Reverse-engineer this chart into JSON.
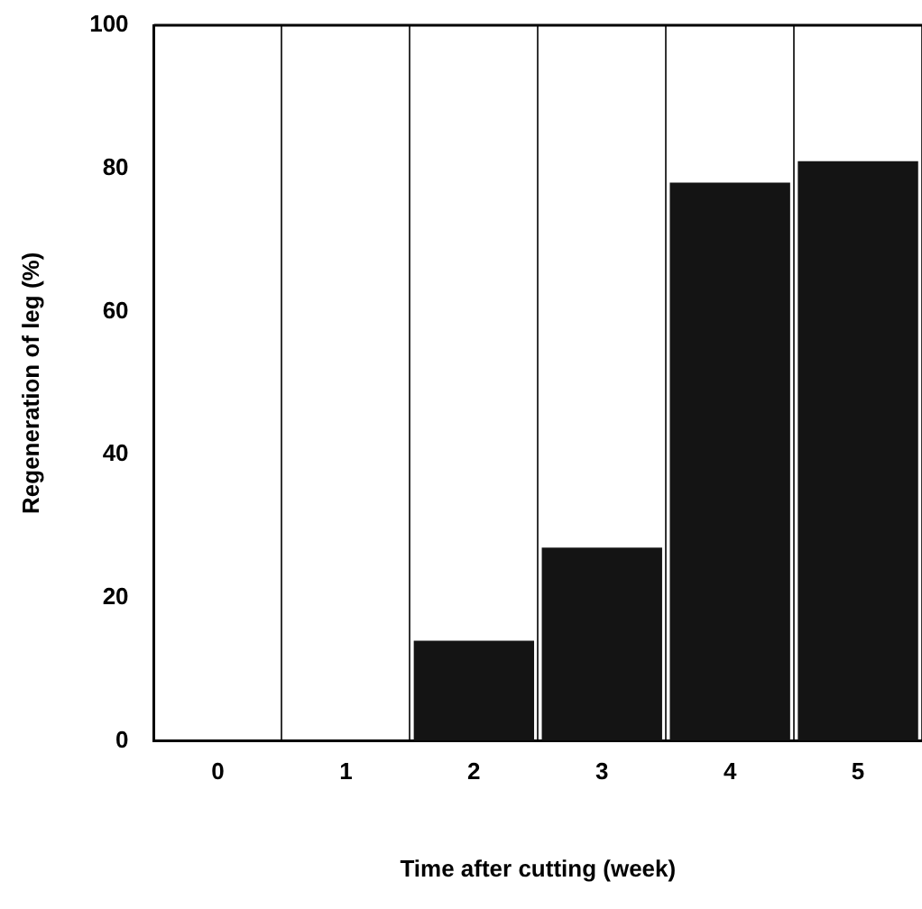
{
  "chart_data": {
    "type": "bar",
    "xlabel": "Time after cutting (week)",
    "ylabel": "Regeneration of leg (%)",
    "categories": [
      "0",
      "1",
      "2",
      "3",
      "4",
      "5"
    ],
    "values": [
      0,
      0,
      14,
      27,
      78,
      81
    ],
    "color": "#141414",
    "ylim": [
      0,
      100
    ],
    "yticks": [
      0,
      20,
      40,
      60,
      80,
      100
    ],
    "grid": "x"
  }
}
